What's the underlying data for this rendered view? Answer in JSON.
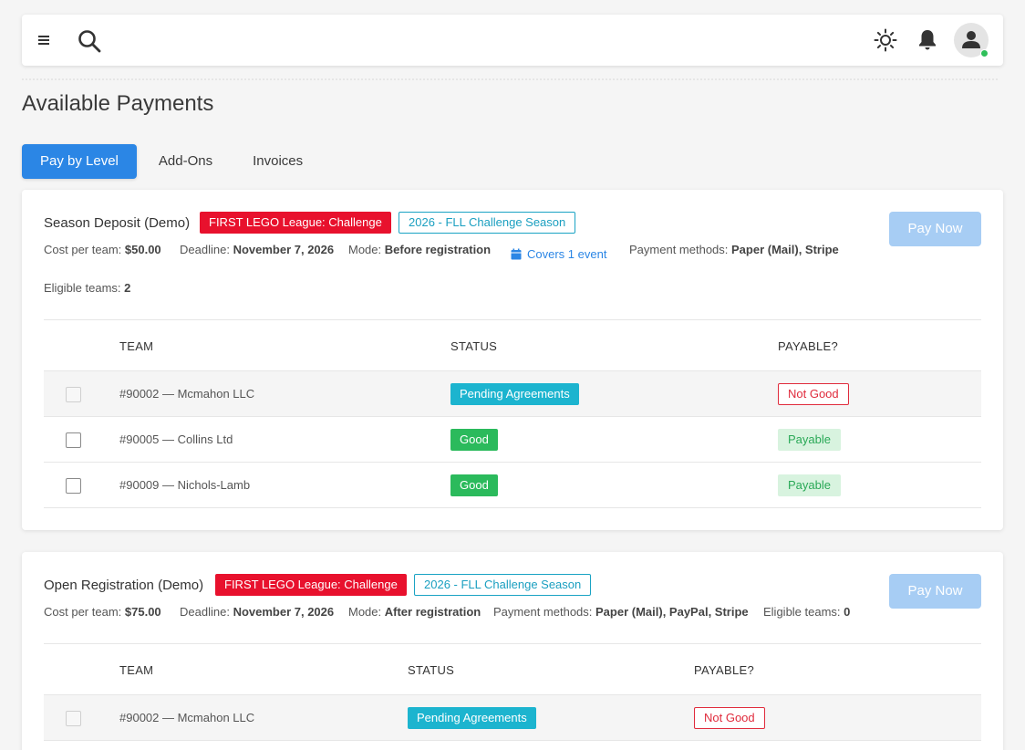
{
  "page_title": "Available Payments",
  "tabs": [
    {
      "label": "Pay by Level",
      "active": true
    },
    {
      "label": "Add-Ons",
      "active": false
    },
    {
      "label": "Invoices",
      "active": false
    }
  ],
  "icons": {
    "menu": "menu-icon",
    "search": "search-icon",
    "theme": "sun-icon",
    "notifications": "bell-icon",
    "avatar": "user-icon",
    "calendar": "calendar-icon"
  },
  "colors": {
    "primary": "#2b86e5",
    "program_badge": "#e8112d",
    "season_badge": "#1aa3c4",
    "pending": "#1cb4cf",
    "good": "#2bba5c",
    "not_good": "#e02b3c",
    "payable_bg": "#d8f3df",
    "online": "#2fbf5a"
  },
  "payments": [
    {
      "title": "Season Deposit (Demo)",
      "program_badge": "FIRST LEGO League: Challenge",
      "season_badge": "2026 - FLL Challenge Season",
      "pay_button": "Pay Now",
      "cost_label": "Cost per team:",
      "cost_value": "$50.00",
      "deadline_label": "Deadline:",
      "deadline_value": "November 7, 2026",
      "mode_label": "Mode:",
      "mode_value": "Before registration",
      "covers": "Covers 1 event",
      "methods_label": "Payment methods:",
      "methods_value": "Paper (Mail), Stripe",
      "eligible_label": "Eligible teams:",
      "eligible_value": "2",
      "columns": [
        "TEAM",
        "STATUS",
        "PAYABLE?"
      ],
      "rows": [
        {
          "team": "#90002 — Mcmahon LLC",
          "status": "Pending Agreements",
          "payable": "Not Good"
        },
        {
          "team": "#90005 — Collins Ltd",
          "status": "Good",
          "payable": "Payable"
        },
        {
          "team": "#90009 — Nichols-Lamb",
          "status": "Good",
          "payable": "Payable"
        }
      ]
    },
    {
      "title": "Open Registration (Demo)",
      "program_badge": "FIRST LEGO League: Challenge",
      "season_badge": "2026 - FLL Challenge Season",
      "pay_button": "Pay Now",
      "cost_label": "Cost per team:",
      "cost_value": "$75.00",
      "deadline_label": "Deadline:",
      "deadline_value": "November 7, 2026",
      "mode_label": "Mode:",
      "mode_value": "After registration",
      "methods_label": "Payment methods:",
      "methods_value": "Paper (Mail), PayPal, Stripe",
      "eligible_label": "Eligible teams:",
      "eligible_value": "0",
      "columns": [
        "TEAM",
        "STATUS",
        "PAYABLE?"
      ],
      "rows": [
        {
          "team": "#90002 — Mcmahon LLC",
          "status": "Pending Agreements",
          "payable": "Not Good"
        }
      ]
    }
  ]
}
